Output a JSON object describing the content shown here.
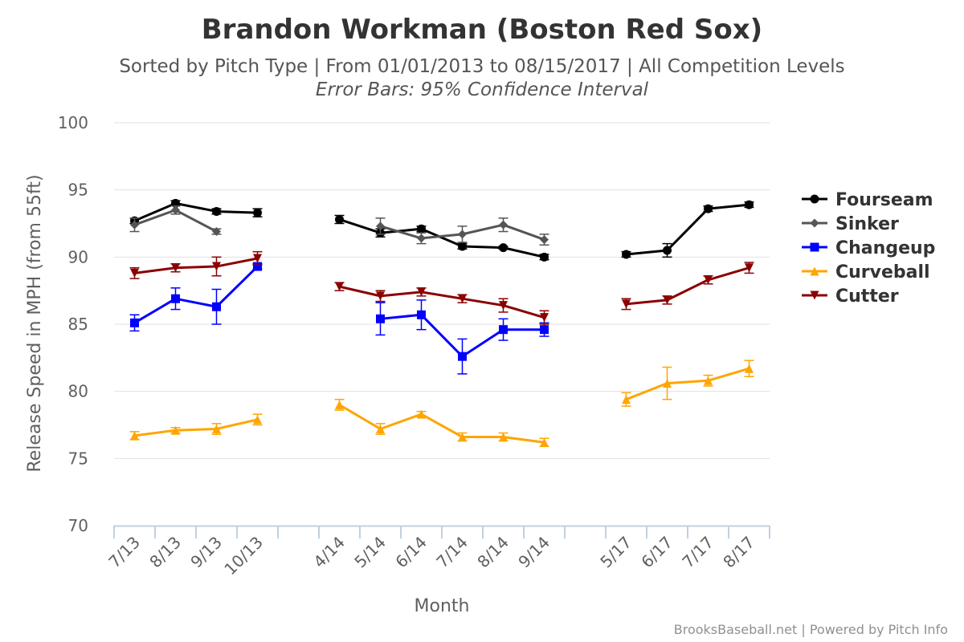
{
  "chart_data": {
    "type": "line",
    "title": "Brandon Workman (Boston Red Sox)",
    "subtitle": "Sorted by Pitch Type | From 01/01/2013 to 08/15/2017 | All Competition Levels",
    "subtitle2": "Error Bars: 95% Confidence Interval",
    "xlabel": "Month",
    "ylabel": "Release Speed in MPH (from 55ft)",
    "ylim": [
      70,
      100
    ],
    "yticks": [
      "70",
      "75",
      "80",
      "85",
      "90",
      "95",
      "100"
    ],
    "categories": [
      "7/13",
      "8/13",
      "9/13",
      "10/13",
      "",
      "4/14",
      "5/14",
      "6/14",
      "7/14",
      "8/14",
      "9/14",
      "",
      "5/17",
      "6/17",
      "7/17",
      "8/17"
    ],
    "grid": true,
    "legend_position": "right",
    "credits": "BrooksBaseball.net | Powered by Pitch Info",
    "series": [
      {
        "name": "Fourseam",
        "color": "#000000",
        "marker": "circle",
        "values": [
          92.7,
          94.0,
          93.4,
          93.3,
          null,
          92.8,
          91.8,
          92.1,
          90.8,
          90.7,
          90.0,
          null,
          90.2,
          90.5,
          93.6,
          93.9
        ],
        "err": [
          0.2,
          0.2,
          0.2,
          0.3,
          null,
          0.3,
          0.3,
          0.2,
          0.2,
          0.1,
          0.2,
          null,
          0.2,
          0.5,
          0.2,
          0.2
        ],
        "segments": [
          [
            0,
            3
          ],
          [
            5,
            10
          ],
          [
            12,
            15
          ]
        ]
      },
      {
        "name": "Sinker",
        "color": "#555555",
        "marker": "diamond",
        "values": [
          92.4,
          93.5,
          91.9,
          null,
          null,
          null,
          92.3,
          91.4,
          91.7,
          92.4,
          91.3,
          null,
          null,
          null,
          null,
          null
        ],
        "err": [
          0.5,
          0.3,
          0.2,
          null,
          null,
          null,
          0.6,
          0.4,
          0.6,
          0.5,
          0.4,
          null,
          null,
          null,
          null,
          null
        ],
        "segments": [
          [
            0,
            2
          ],
          [
            6,
            10
          ]
        ]
      },
      {
        "name": "Changeup",
        "color": "#0000ff",
        "marker": "square",
        "values": [
          85.1,
          86.9,
          86.3,
          89.3,
          null,
          null,
          85.4,
          85.7,
          82.6,
          84.6,
          84.6,
          null,
          null,
          null,
          null,
          null
        ],
        "err": [
          0.6,
          0.8,
          1.3,
          0.2,
          null,
          null,
          1.2,
          1.1,
          1.3,
          0.8,
          0.5,
          null,
          null,
          null,
          null,
          null
        ],
        "segments": [
          [
            0,
            3
          ],
          [
            6,
            10
          ]
        ]
      },
      {
        "name": "Curveball",
        "color": "#ffa500",
        "marker": "triangle",
        "values": [
          76.7,
          77.1,
          77.2,
          77.9,
          null,
          79.0,
          77.2,
          78.3,
          76.6,
          76.6,
          76.2,
          null,
          79.4,
          80.6,
          80.8,
          81.7
        ],
        "err": [
          0.3,
          0.2,
          0.4,
          0.4,
          null,
          0.4,
          0.4,
          0.2,
          0.3,
          0.3,
          0.3,
          null,
          0.5,
          1.2,
          0.4,
          0.6
        ],
        "segments": [
          [
            0,
            3
          ],
          [
            5,
            10
          ],
          [
            12,
            15
          ]
        ]
      },
      {
        "name": "Cutter",
        "color": "#8b0000",
        "marker": "triangle-down",
        "values": [
          88.8,
          89.2,
          89.3,
          89.9,
          null,
          87.8,
          87.1,
          87.4,
          86.9,
          86.4,
          85.5,
          null,
          86.5,
          86.8,
          88.3,
          89.2
        ],
        "err": [
          0.4,
          0.3,
          0.7,
          0.5,
          null,
          0.3,
          0.4,
          0.3,
          0.3,
          0.5,
          0.5,
          null,
          0.4,
          0.3,
          0.3,
          0.4
        ],
        "segments": [
          [
            0,
            3
          ],
          [
            5,
            10
          ],
          [
            12,
            15
          ]
        ]
      }
    ]
  }
}
